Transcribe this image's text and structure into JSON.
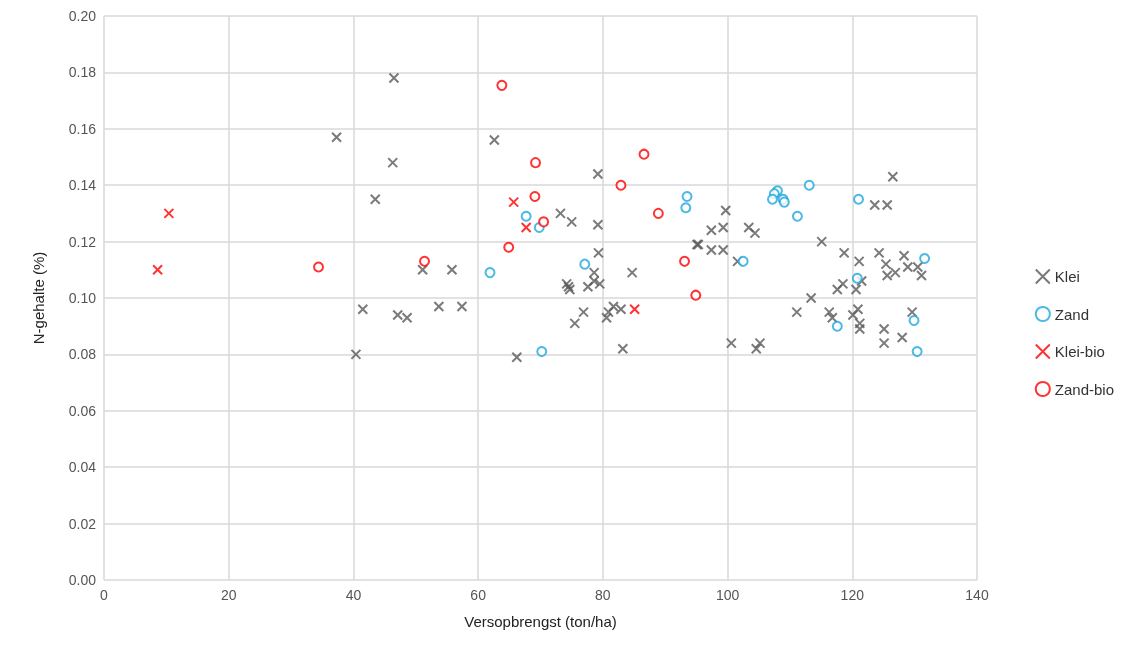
{
  "chart_data": {
    "type": "scatter",
    "xlabel": "Versopbrengst (ton/ha)",
    "ylabel": "N-gehalte (%)",
    "xlim": [
      0,
      140
    ],
    "xticks": [
      0,
      20,
      40,
      60,
      80,
      100,
      120,
      140
    ],
    "ylim": [
      0,
      0.2
    ],
    "yticks": [
      {
        "value": 0,
        "label": "0.00"
      },
      {
        "value": 0.02,
        "label": "0.02"
      },
      {
        "value": 0.04,
        "label": "0.04"
      },
      {
        "value": 0.06,
        "label": "0.06"
      },
      {
        "value": 0.08,
        "label": "0.08"
      },
      {
        "value": 0.1,
        "label": "0.10"
      },
      {
        "value": 0.12,
        "label": "0.12"
      },
      {
        "value": 0.14,
        "label": "0.14"
      },
      {
        "value": 0.16,
        "label": "0.16"
      },
      {
        "value": 0.18,
        "label": "0.18"
      },
      {
        "value": 0.2,
        "label": "0.20"
      }
    ],
    "grid": true,
    "legend": "right",
    "series": [
      {
        "name": "Klei",
        "color": "#595959",
        "marker": "cross",
        "x": [
          46.5,
          37.3,
          46.3,
          43.5,
          41.5,
          47.1,
          40.4,
          62.6,
          79.2,
          73.2,
          75.0,
          79.2,
          79.3,
          95.1,
          51.1,
          55.8,
          78.6,
          78.6,
          77.6,
          79.5,
          74.2,
          74.7,
          74.5,
          84.7,
          53.7,
          57.4,
          48.6,
          76.9,
          75.5,
          81.7,
          80.9,
          80.6,
          82.9,
          83.2,
          66.2,
          126.5,
          123.6,
          125.6,
          99.7,
          97.4,
          99.3,
          103.4,
          104.4,
          95.3,
          97.4,
          99.3,
          101.6,
          115.1,
          118.7,
          121.1,
          124.3,
          125.4,
          128.3,
          128.9,
          130.5,
          131.1,
          125.6,
          126.9,
          121.5,
          118.5,
          117.6,
          120.6,
          113.4,
          111.1,
          116.3,
          116.8,
          120.1,
          120.9,
          121.2,
          121.2,
          129.6,
          125.1,
          125.1,
          128.0,
          100.6,
          105.2,
          104.6
        ],
        "values": [
          0.178,
          0.157,
          0.148,
          0.135,
          0.096,
          0.094,
          0.08,
          0.156,
          0.144,
          0.13,
          0.127,
          0.126,
          0.116,
          0.119,
          0.11,
          0.11,
          0.109,
          0.106,
          0.104,
          0.105,
          0.105,
          0.103,
          0.104,
          0.109,
          0.097,
          0.097,
          0.093,
          0.095,
          0.091,
          0.097,
          0.095,
          0.093,
          0.096,
          0.082,
          0.079,
          0.143,
          0.133,
          0.133,
          0.131,
          0.124,
          0.125,
          0.125,
          0.123,
          0.119,
          0.117,
          0.117,
          0.113,
          0.12,
          0.116,
          0.113,
          0.116,
          0.112,
          0.115,
          0.111,
          0.111,
          0.108,
          0.108,
          0.109,
          0.106,
          0.105,
          0.103,
          0.103,
          0.1,
          0.095,
          0.095,
          0.093,
          0.094,
          0.096,
          0.091,
          0.089,
          0.095,
          0.089,
          0.084,
          0.086,
          0.084,
          0.084,
          0.082
        ]
      },
      {
        "name": "Zand",
        "color": "#1fa8df",
        "marker": "circle",
        "x": [
          93.5,
          93.3,
          67.7,
          69.8,
          61.9,
          77.1,
          70.2,
          113.1,
          108.0,
          107.5,
          107.2,
          108.9,
          109.1,
          111.2,
          121.0,
          102.5,
          131.6,
          120.8,
          117.6,
          129.9,
          130.4
        ],
        "values": [
          0.136,
          0.132,
          0.129,
          0.125,
          0.109,
          0.112,
          0.081,
          0.14,
          0.138,
          0.137,
          0.135,
          0.135,
          0.134,
          0.129,
          0.135,
          0.113,
          0.114,
          0.107,
          0.09,
          0.092,
          0.081
        ]
      },
      {
        "name": "Klei-bio",
        "color": "#ff0000",
        "marker": "cross",
        "x": [
          10.4,
          8.6,
          65.7,
          67.7,
          85.1
        ],
        "values": [
          0.13,
          0.11,
          0.134,
          0.125,
          0.096
        ]
      },
      {
        "name": "Zand-bio",
        "color": "#ff0000",
        "marker": "circle",
        "x": [
          34.4,
          63.8,
          69.2,
          86.6,
          82.9,
          88.9,
          69.1,
          70.5,
          64.9,
          51.4,
          93.1,
          94.9
        ],
        "values": [
          0.111,
          0.1754,
          0.148,
          0.151,
          0.14,
          0.13,
          0.136,
          0.127,
          0.118,
          0.113,
          0.113,
          0.101
        ]
      }
    ]
  }
}
